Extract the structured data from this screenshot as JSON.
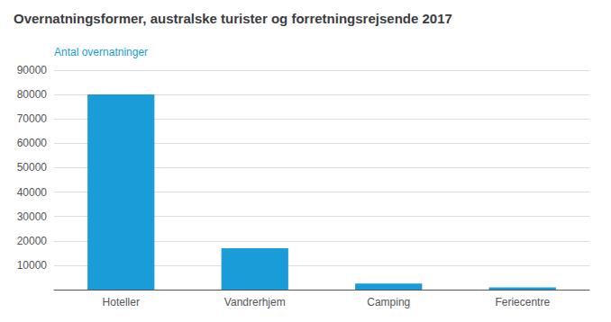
{
  "chart_data": {
    "type": "bar",
    "title": "Overnatningsformer, australske turister og forretningsrejsende 2017",
    "ylabel": "Antal overnatninger",
    "categories": [
      "Hoteller",
      "Vandrerhjem",
      "Camping",
      "Feriecentre"
    ],
    "values": [
      80000,
      17000,
      2500,
      900
    ],
    "color": "#1a9cd8",
    "ylim": [
      0,
      90000
    ],
    "yticks": [
      {
        "value": 0,
        "label": ""
      },
      10000,
      20000,
      30000,
      40000,
      50000,
      60000,
      70000,
      80000,
      90000
    ],
    "grid": true
  }
}
